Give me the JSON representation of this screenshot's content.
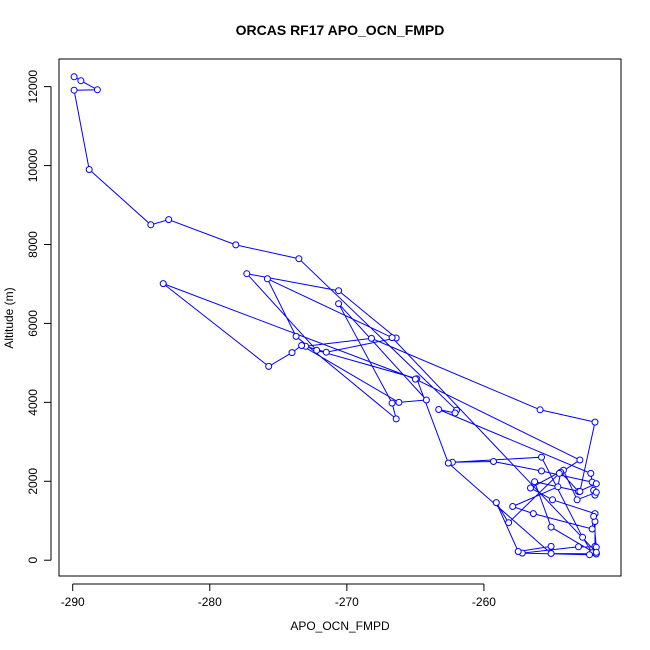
{
  "chart_data": {
    "type": "line",
    "title": "ORCAS RF17 APO_OCN_FMPD",
    "xlabel": "APO_OCN_FMPD",
    "ylabel": "Altitude (m)",
    "xlim": [
      -291,
      -250
    ],
    "ylim": [
      -400,
      12700
    ],
    "xticks": [
      -290,
      -280,
      -270,
      -260
    ],
    "yticks": [
      0,
      2000,
      4000,
      6000,
      8000,
      10000,
      12000
    ],
    "xtick_labels": [
      "-290",
      "-280",
      "-270",
      "-260"
    ],
    "ytick_labels": [
      "0",
      "2000",
      "4000",
      "6000",
      "8000",
      "10000",
      "12000"
    ],
    "grid": false,
    "line_color": "#0000ff",
    "marker": "open-circle",
    "series": [
      {
        "x": [
          -289.9,
          -289.4,
          -288.2,
          -289.9,
          -288.8,
          -284.3,
          -283.0,
          -278.1,
          -273.5,
          -262.0,
          -262.1,
          -263.3,
          -252.2,
          -252.0,
          -251.9,
          -251.8,
          -253.2,
          -254.2,
          -256.6,
          -255.0,
          -251.9,
          -251.9,
          -251.9,
          -252.1,
          -252.8,
          -255.8,
          -262.3,
          -259.3,
          -255.8,
          -252.1,
          -251.8,
          -253.1,
          -254.4,
          -254.6,
          -257.9,
          -256.4,
          -252.1,
          -252.0,
          -251.8,
          -253.1,
          -257.2,
          -252.3,
          -251.8,
          -255.1,
          -262.6,
          -264.9,
          -272.2,
          -277.3,
          -270.6,
          -266.4,
          -271.5,
          -273.0,
          -268.2,
          -255.9,
          -251.9,
          -253.0,
          -256.3,
          -255.1,
          -251.8,
          -251.8,
          -266.7,
          -275.8,
          -273.7,
          -266.4,
          -266.7,
          -270.6,
          -264.2,
          -266.2,
          -273.3,
          -274.0,
          -275.7,
          -283.4,
          -265.0,
          -253.0,
          -254.5,
          -258.2,
          -259.1,
          -257.5,
          -255.1
        ]
      }
    ]
  }
}
